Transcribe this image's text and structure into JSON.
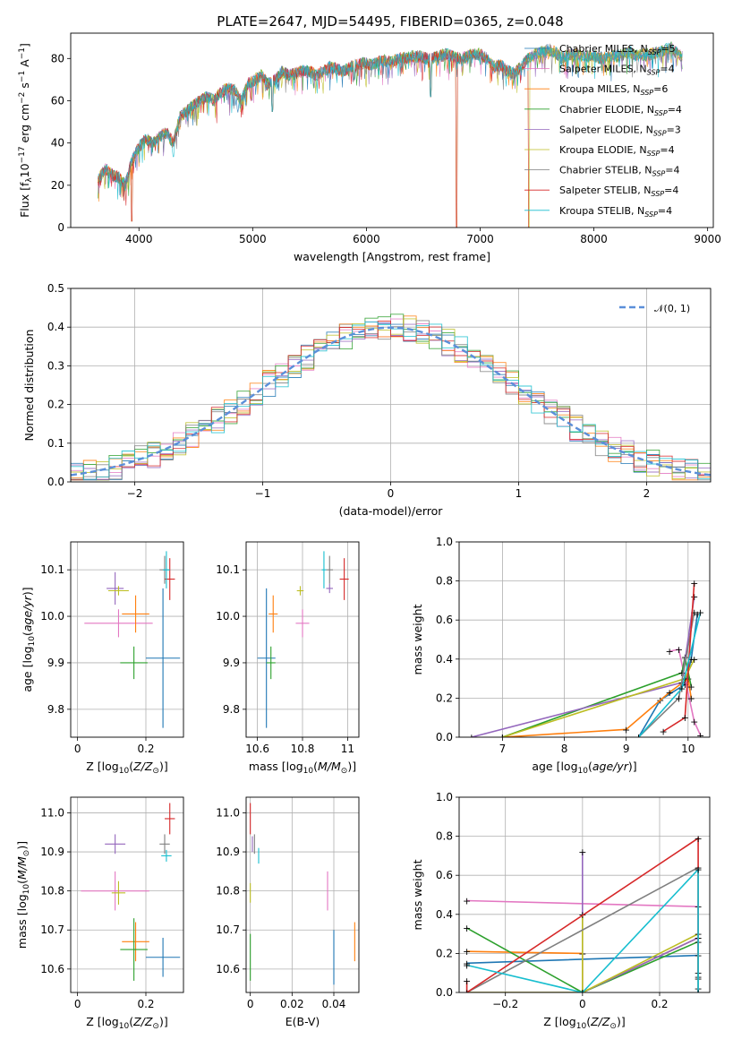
{
  "figure_title": "PLATE=2647, MJD=54495, FIBERID=0365, z=0.048",
  "models": [
    {
      "name": "Chabrier MILES, N$_{SSP}$=5",
      "short": "Chabrier MILES",
      "nssp": "5",
      "color": "#1f77b4"
    },
    {
      "name": "Salpeter MILES, N$_{SSP}$=4",
      "short": "Salpeter MILES",
      "nssp": "4",
      "color": "#e377c2"
    },
    {
      "name": "Kroupa MILES, N$_{SSP}$=6",
      "short": "Kroupa MILES",
      "nssp": "6",
      "color": "#ff7f0e"
    },
    {
      "name": "Chabrier ELODIE, N$_{SSP}$=4",
      "short": "Chabrier ELODIE",
      "nssp": "4",
      "color": "#2ca02c"
    },
    {
      "name": "Salpeter ELODIE, N$_{SSP}$=3",
      "short": "Salpeter ELODIE",
      "nssp": "3",
      "color": "#9467bd"
    },
    {
      "name": "Kroupa ELODIE, N$_{SSP}$=4",
      "short": "Kroupa ELODIE",
      "nssp": "4",
      "color": "#bcbd22"
    },
    {
      "name": "Chabrier STELIB, N$_{SSP}$=4",
      "short": "Chabrier STELIB",
      "nssp": "4",
      "color": "#7f7f7f"
    },
    {
      "name": "Salpeter STELIB, N$_{SSP}$=4",
      "short": "Salpeter STELIB",
      "nssp": "4",
      "color": "#d62728"
    },
    {
      "name": "Kroupa STELIB, N$_{SSP}$=4",
      "short": "Kroupa STELIB",
      "nssp": "4",
      "color": "#17becf"
    }
  ],
  "chart_data": [
    {
      "id": "spectrum",
      "type": "line",
      "xlabel": "wavelength [Angstrom, rest frame]",
      "ylabel": "Flux [f_λ 10^-17 erg cm^-2 s^-1 A^-1]",
      "xlim": [
        3400,
        9050
      ],
      "ylim": [
        0,
        92
      ],
      "xticks": [
        4000,
        5000,
        6000,
        7000,
        8000,
        9000
      ],
      "yticks": [
        0,
        20,
        40,
        60,
        80
      ],
      "x": [
        3640,
        3700,
        3760,
        3820,
        3880,
        3940,
        4000,
        4060,
        4120,
        4180,
        4240,
        4300,
        4360,
        4420,
        4480,
        4540,
        4600,
        4660,
        4720,
        4780,
        4840,
        4900,
        4960,
        5020,
        5080,
        5140,
        5200,
        5260,
        5320,
        5380,
        5440,
        5500,
        5560,
        5620,
        5680,
        5740,
        5800,
        5860,
        5920,
        5980,
        6040,
        6100,
        6160,
        6220,
        6280,
        6340,
        6400,
        6460,
        6520,
        6580,
        6640,
        6700,
        6760,
        6820,
        6880,
        6940,
        7000,
        7060,
        7120,
        7180,
        7240,
        7300,
        7360,
        7420,
        7480,
        7540,
        7600,
        7660,
        7720,
        7780,
        7840,
        7900,
        7960,
        8020,
        8080,
        8140,
        8200,
        8260,
        8320,
        8380,
        8440,
        8500,
        8560,
        8620,
        8680,
        8740,
        8800
      ],
      "y": [
        22,
        28,
        25,
        24,
        20,
        32,
        38,
        42,
        40,
        43,
        45,
        40,
        52,
        55,
        58,
        60,
        62,
        60,
        64,
        66,
        65,
        60,
        68,
        70,
        72,
        68,
        70,
        74,
        72,
        73,
        74,
        74,
        72,
        74,
        76,
        75,
        74,
        76,
        77,
        78,
        77,
        78,
        79,
        78,
        80,
        80,
        81,
        81,
        80,
        80,
        81,
        82,
        81,
        80,
        81,
        82,
        82,
        80,
        76,
        77,
        74,
        73,
        76,
        80,
        82,
        83,
        84,
        83,
        80,
        82,
        82,
        81,
        81,
        81,
        80,
        81,
        81,
        82,
        83,
        81,
        82,
        82,
        83,
        84,
        85,
        82,
        80
      ],
      "dips": [
        {
          "x": 3935,
          "y": 3
        },
        {
          "x": 5175,
          "y": 55
        },
        {
          "x": 5895,
          "y": 70
        },
        {
          "x": 6565,
          "y": 62
        },
        {
          "x": 6795,
          "y": 0
        },
        {
          "x": 7430,
          "y": 0
        }
      ],
      "legend_position": "upper right",
      "grid": false
    },
    {
      "id": "residuals",
      "type": "histogram",
      "xlabel": "(data-model)/error",
      "ylabel": "Normed distribution",
      "xlim": [
        -2.5,
        2.5
      ],
      "ylim": [
        0,
        0.5
      ],
      "xticks": [
        -2,
        -1,
        0,
        1,
        2
      ],
      "yticks": [
        0.0,
        0.1,
        0.2,
        0.3,
        0.4,
        0.5
      ],
      "bin_width": 0.1,
      "bin_start": -2.5,
      "reference_curve": "N(0,1)",
      "reference_label": "$\\mathcal{N}(0,1)$",
      "grid": true,
      "legend_position": "upper right"
    },
    {
      "id": "Z_vs_age",
      "type": "scatter",
      "xlabel": "Z [log10(Z/Zsun)]",
      "ylabel": "age  [log10(age/yr)]",
      "xlim": [
        -0.02,
        0.31
      ],
      "ylim": [
        9.74,
        10.16
      ],
      "xticks": [
        0.0,
        0.2
      ],
      "yticks": [
        9.8,
        9.9,
        10.0,
        10.1
      ],
      "points": [
        {
          "x": 0.25,
          "y": 9.91,
          "xerr": 0.05,
          "yerr": 0.15
        },
        {
          "x": 0.12,
          "y": 9.985,
          "xerr": 0.1,
          "yerr": 0.03
        },
        {
          "x": 0.17,
          "y": 10.005,
          "xerr": 0.04,
          "yerr": 0.04
        },
        {
          "x": 0.165,
          "y": 9.9,
          "xerr": 0.04,
          "yerr": 0.035
        },
        {
          "x": 0.11,
          "y": 10.06,
          "xerr": 0.025,
          "yerr": 0.035
        },
        {
          "x": 0.12,
          "y": 10.055,
          "xerr": 0.03,
          "yerr": 0.01
        },
        {
          "x": 0.255,
          "y": 10.1,
          "xerr": 0.015,
          "yerr": 0.03
        },
        {
          "x": 0.27,
          "y": 10.08,
          "xerr": 0.015,
          "yerr": 0.045
        },
        {
          "x": 0.26,
          "y": 10.1,
          "xerr": 0.01,
          "yerr": 0.04
        }
      ],
      "grid": true
    },
    {
      "id": "mass_vs_age",
      "type": "scatter",
      "xlabel": "mass [log10(M/Msun)]",
      "ylabel": "",
      "xlim": [
        10.55,
        11.05
      ],
      "ylim": [
        9.74,
        10.16
      ],
      "xticks": [
        10.6,
        10.8,
        11.0
      ],
      "yticks": [
        9.8,
        9.9,
        10.0,
        10.1
      ],
      "points": [
        {
          "x": 10.64,
          "y": 9.91,
          "xerr": 0.04,
          "yerr": 0.15
        },
        {
          "x": 10.8,
          "y": 9.985,
          "xerr": 0.03,
          "yerr": 0.03
        },
        {
          "x": 10.67,
          "y": 10.005,
          "xerr": 0.02,
          "yerr": 0.04
        },
        {
          "x": 10.66,
          "y": 9.9,
          "xerr": 0.02,
          "yerr": 0.035
        },
        {
          "x": 10.92,
          "y": 10.06,
          "xerr": 0.015,
          "yerr": 0.01
        },
        {
          "x": 10.79,
          "y": 10.055,
          "xerr": 0.015,
          "yerr": 0.01
        },
        {
          "x": 10.92,
          "y": 10.1,
          "xerr": 0.015,
          "yerr": 0.03
        },
        {
          "x": 10.985,
          "y": 10.08,
          "xerr": 0.02,
          "yerr": 0.045
        },
        {
          "x": 10.895,
          "y": 10.1,
          "xerr": 0.01,
          "yerr": 0.04
        }
      ],
      "grid": true
    },
    {
      "id": "age_vs_weight",
      "type": "line",
      "xlabel": "age  [log10(age/yr)]",
      "ylabel": "mass weight",
      "xlim": [
        6.3,
        10.35
      ],
      "ylim": [
        0,
        1.0
      ],
      "xticks": [
        7,
        8,
        9,
        10
      ],
      "yticks": [
        0.0,
        0.2,
        0.4,
        0.6,
        0.8,
        1.0
      ],
      "series": [
        {
          "points": [
            [
              9.2,
              0.0
            ],
            [
              9.55,
              0.19
            ],
            [
              9.95,
              0.27
            ],
            [
              10.05,
              0.4
            ],
            [
              10.15,
              0.63
            ]
          ]
        },
        {
          "points": [
            [
              9.7,
              0.44
            ],
            [
              9.85,
              0.45
            ],
            [
              10.1,
              0.08
            ],
            [
              10.2,
              0.01
            ]
          ]
        },
        {
          "points": [
            [
              7.0,
              0.0
            ],
            [
              9.0,
              0.04
            ],
            [
              9.7,
              0.23
            ],
            [
              10.0,
              0.3
            ],
            [
              10.05,
              0.2
            ]
          ]
        },
        {
          "points": [
            [
              7.0,
              0.0
            ],
            [
              9.9,
              0.33
            ],
            [
              9.95,
              0.41
            ],
            [
              10.05,
              0.26
            ]
          ]
        },
        {
          "points": [
            [
              6.5,
              0.0
            ],
            [
              9.9,
              0.28
            ],
            [
              10.1,
              0.72
            ]
          ]
        },
        {
          "points": [
            [
              7.0,
              0.0
            ],
            [
              9.95,
              0.3
            ],
            [
              10.1,
              0.4
            ]
          ]
        },
        {
          "points": [
            [
              9.2,
              0.0
            ],
            [
              9.85,
              0.2
            ],
            [
              10.1,
              0.64
            ]
          ]
        },
        {
          "points": [
            [
              9.6,
              0.03
            ],
            [
              9.95,
              0.1
            ],
            [
              10.1,
              0.79
            ]
          ]
        },
        {
          "points": [
            [
              9.2,
              0.0
            ],
            [
              9.9,
              0.25
            ],
            [
              10.2,
              0.64
            ]
          ]
        }
      ],
      "grid": true
    },
    {
      "id": "Z_vs_mass",
      "type": "scatter",
      "xlabel": "Z [log10(Z/Zsun)]",
      "ylabel": "mass [log10(M/Msun)]",
      "xlim": [
        -0.02,
        0.31
      ],
      "ylim": [
        10.54,
        11.04
      ],
      "xticks": [
        0.0,
        0.2
      ],
      "yticks": [
        10.6,
        10.7,
        10.8,
        10.9,
        11.0
      ],
      "points": [
        {
          "x": 0.25,
          "y": 10.63,
          "xerr": 0.05,
          "yerr": 0.05
        },
        {
          "x": 0.11,
          "y": 10.8,
          "xerr": 0.1,
          "yerr": 0.05
        },
        {
          "x": 0.17,
          "y": 10.67,
          "xerr": 0.04,
          "yerr": 0.05
        },
        {
          "x": 0.165,
          "y": 10.65,
          "xerr": 0.04,
          "yerr": 0.08
        },
        {
          "x": 0.11,
          "y": 10.92,
          "xerr": 0.03,
          "yerr": 0.025
        },
        {
          "x": 0.12,
          "y": 10.795,
          "xerr": 0.02,
          "yerr": 0.03
        },
        {
          "x": 0.255,
          "y": 10.92,
          "xerr": 0.015,
          "yerr": 0.025
        },
        {
          "x": 0.27,
          "y": 10.985,
          "xerr": 0.015,
          "yerr": 0.04
        },
        {
          "x": 0.26,
          "y": 10.89,
          "xerr": 0.015,
          "yerr": 0.015
        }
      ],
      "grid": true
    },
    {
      "id": "ebv_vs_mass",
      "type": "scatter",
      "xlabel": "E(B-V)",
      "ylabel": "",
      "xlim": [
        -0.002,
        0.052
      ],
      "ylim": [
        10.54,
        11.04
      ],
      "xticks": [
        0.0,
        0.02,
        0.04
      ],
      "yticks": [
        10.6,
        10.7,
        10.8,
        10.9,
        11.0
      ],
      "points": [
        {
          "x": 0.04,
          "y": 10.63,
          "xerr": 0,
          "yerr": 0.07
        },
        {
          "x": 0.037,
          "y": 10.8,
          "xerr": 0,
          "yerr": 0.05
        },
        {
          "x": 0.05,
          "y": 10.67,
          "xerr": 0,
          "yerr": 0.05
        },
        {
          "x": 0.0,
          "y": 10.63,
          "xerr": 0,
          "yerr": 0.06
        },
        {
          "x": 0.001,
          "y": 10.92,
          "xerr": 0,
          "yerr": 0.02
        },
        {
          "x": 0.0,
          "y": 10.795,
          "xerr": 0,
          "yerr": 0.025
        },
        {
          "x": 0.002,
          "y": 10.92,
          "xerr": 0,
          "yerr": 0.025
        },
        {
          "x": 0.0,
          "y": 10.985,
          "xerr": 0,
          "yerr": 0.04
        },
        {
          "x": 0.004,
          "y": 10.89,
          "xerr": 0,
          "yerr": 0.02
        }
      ],
      "grid": true
    },
    {
      "id": "Z_vs_weight",
      "type": "line",
      "xlabel": "Z [log10(Z/Zsun)]",
      "ylabel": "mass weight",
      "xlim": [
        -0.32,
        0.33
      ],
      "ylim": [
        0,
        1.0
      ],
      "xticks": [
        -0.2,
        0.0,
        0.2
      ],
      "yticks": [
        0.0,
        0.2,
        0.4,
        0.6,
        0.8,
        1.0
      ],
      "series": [
        {
          "points": [
            [
              -0.3,
              0.15
            ],
            [
              0.3,
              0.19
            ],
            [
              0.3,
              0.0
            ]
          ]
        },
        {
          "points": [
            [
              -0.3,
              0.47
            ],
            [
              0.3,
              0.44
            ],
            [
              0.3,
              0.08
            ]
          ]
        },
        {
          "points": [
            [
              -0.3,
              0.21
            ],
            [
              0.0,
              0.2
            ],
            [
              0.0,
              0.0
            ],
            [
              0.3,
              0.28
            ],
            [
              0.3,
              0.02
            ]
          ]
        },
        {
          "points": [
            [
              -0.3,
              0.33
            ],
            [
              0.0,
              0.0
            ],
            [
              0.3,
              0.26
            ],
            [
              0.3,
              0.07
            ]
          ]
        },
        {
          "points": [
            [
              -0.3,
              0.0
            ],
            [
              0.0,
              0.0
            ],
            [
              0.0,
              0.72
            ],
            [
              0.0,
              0.0
            ],
            [
              0.3,
              0.28
            ]
          ]
        },
        {
          "points": [
            [
              -0.3,
              0.0
            ],
            [
              0.0,
              0.0
            ],
            [
              0.0,
              0.4
            ],
            [
              0.0,
              0.0
            ],
            [
              0.3,
              0.3
            ]
          ]
        },
        {
          "points": [
            [
              -0.3,
              0.0
            ],
            [
              0.3,
              0.64
            ],
            [
              0.3,
              0.0
            ]
          ]
        },
        {
          "points": [
            [
              -0.3,
              0.06
            ],
            [
              -0.3,
              0.0
            ],
            [
              0.3,
              0.79
            ],
            [
              0.3,
              0.1
            ]
          ]
        },
        {
          "points": [
            [
              -0.3,
              0.14
            ],
            [
              0.0,
              0.0
            ],
            [
              0.3,
              0.63
            ],
            [
              0.3,
              0.0
            ]
          ]
        }
      ],
      "grid": true
    }
  ]
}
